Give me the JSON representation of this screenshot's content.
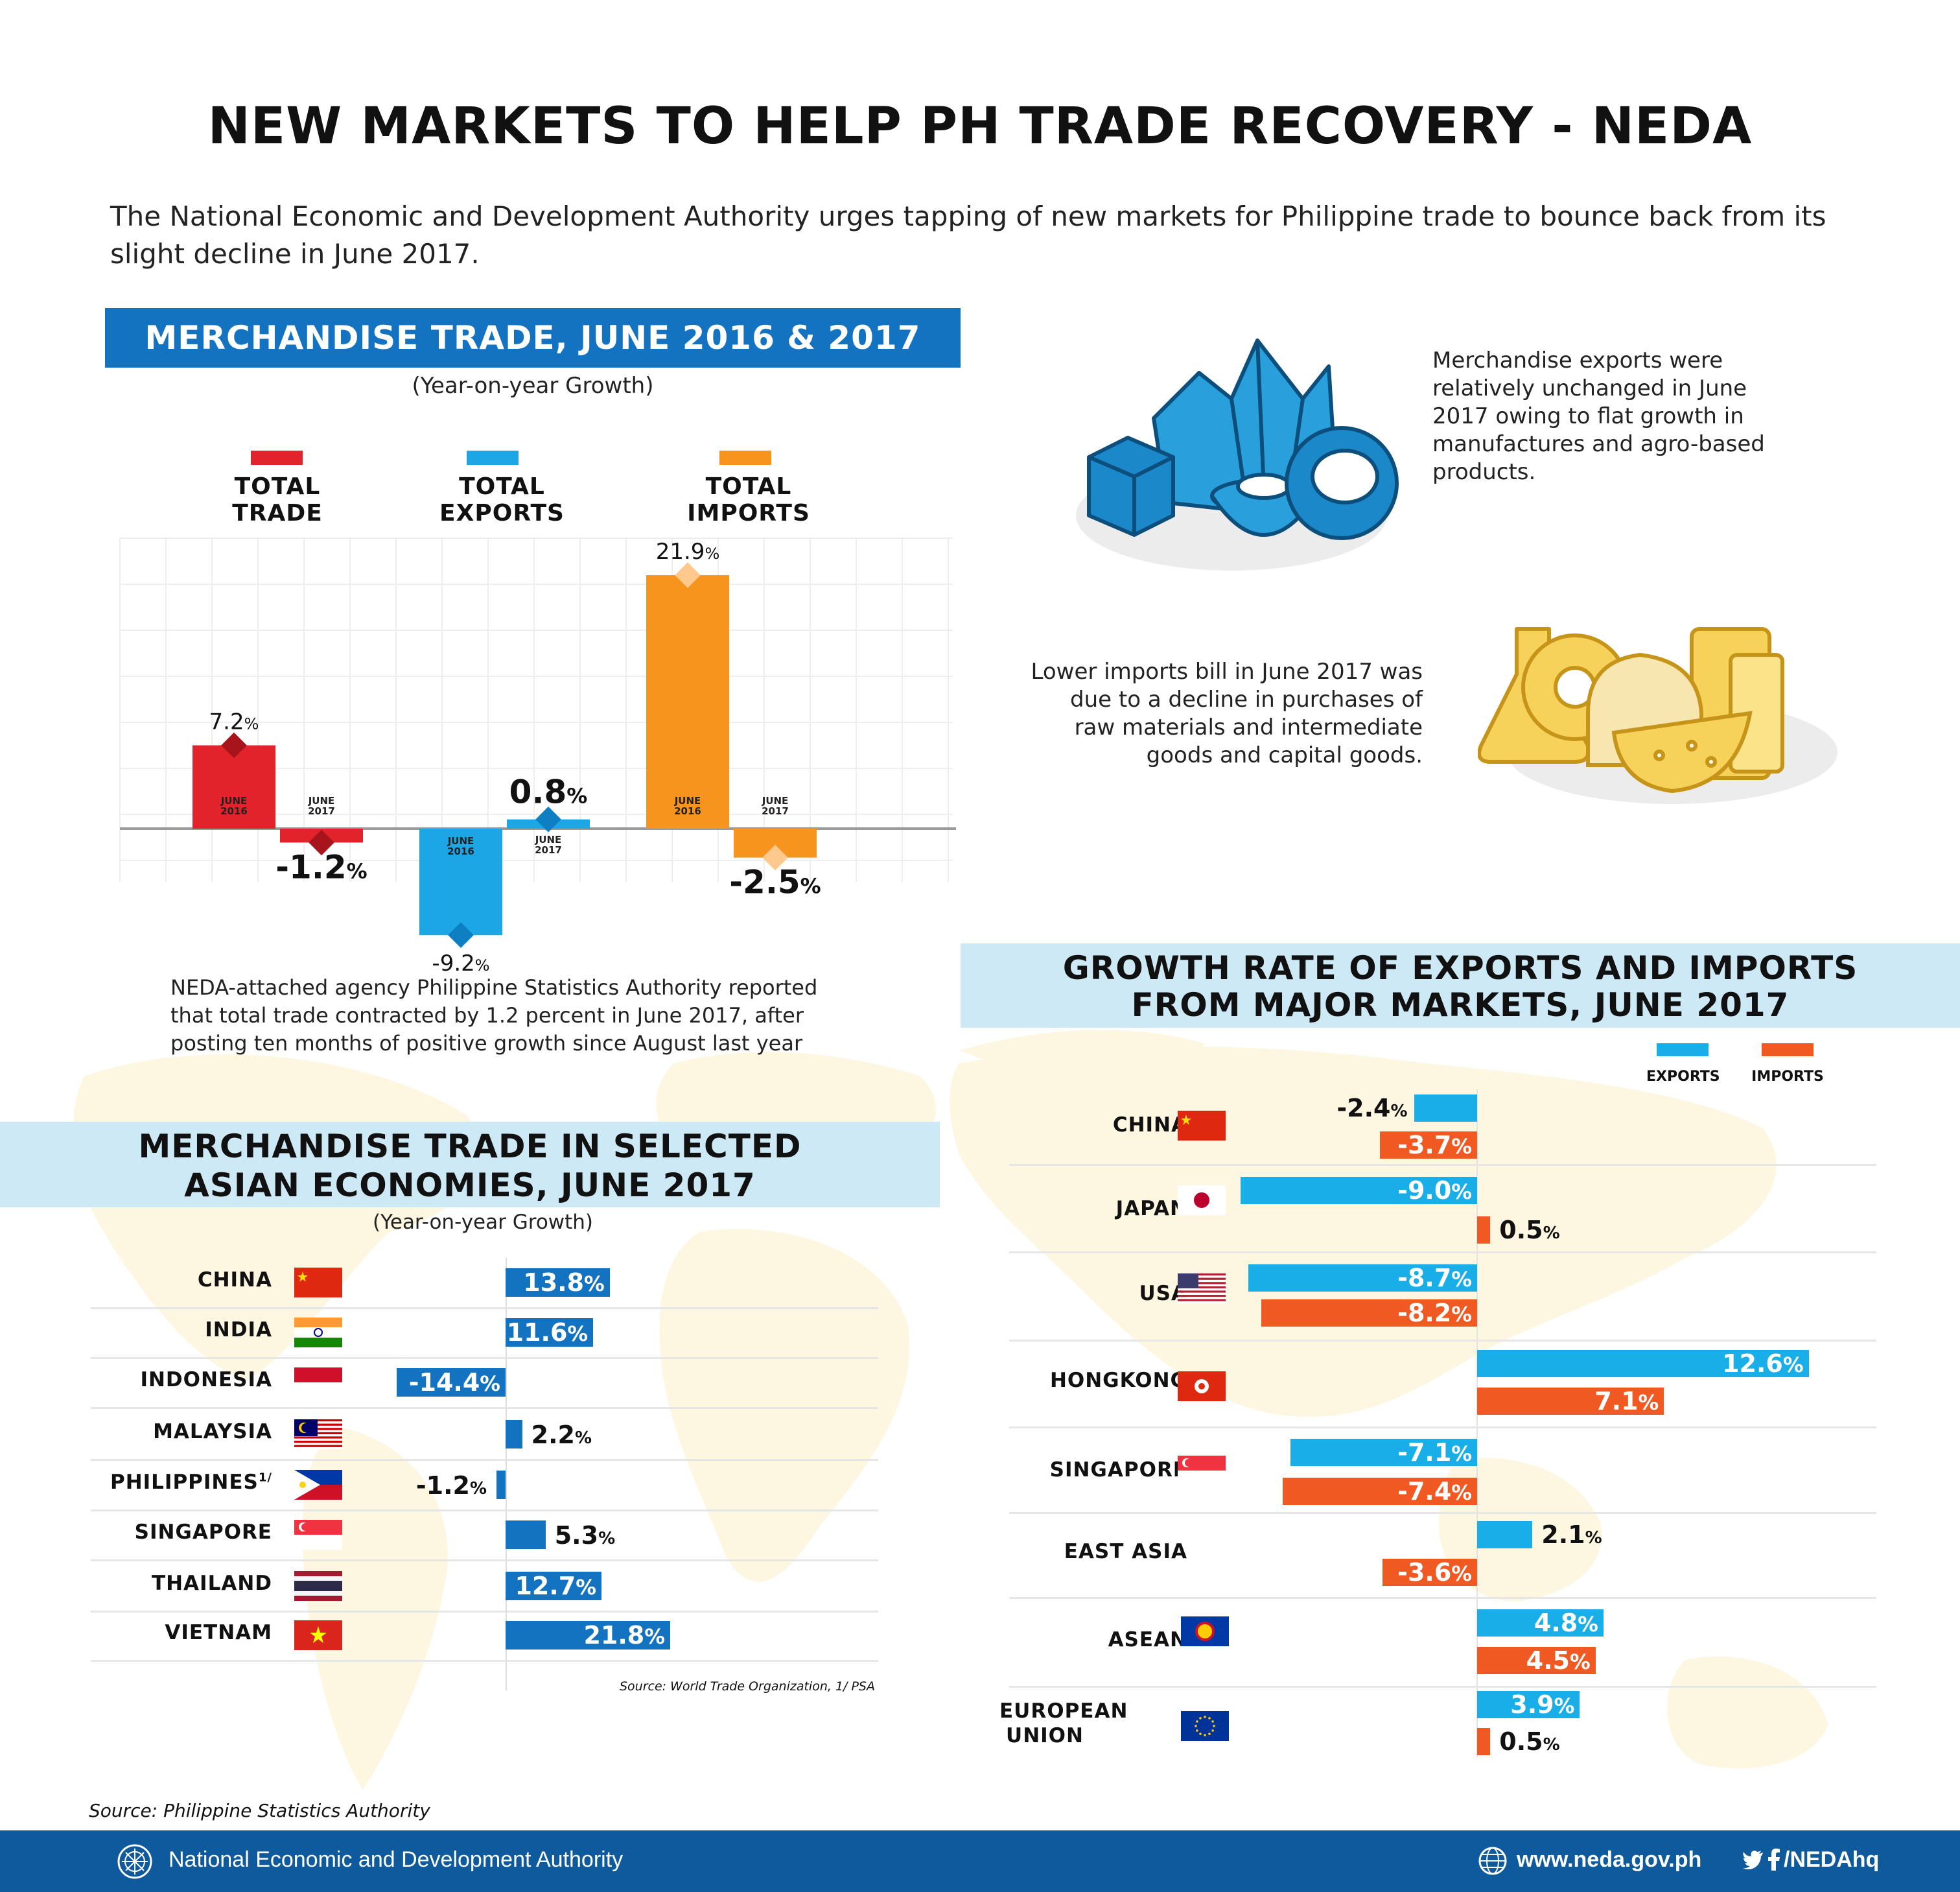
{
  "header": {
    "title": "NEW MARKETS TO HELP PH TRADE RECOVERY - NEDA",
    "intro": "The National Economic and Development Authority urges tapping of new markets for Philippine trade to bounce back from its slight decline in June 2017."
  },
  "trade_chart_header": {
    "title": "MERCHANDISE TRADE, JUNE 2016 & 2017",
    "subtitle": "(Year-on-year Growth)"
  },
  "trade_legend": [
    {
      "label": "TOTAL TRADE",
      "color": "#e3232b"
    },
    {
      "label": "TOTAL EXPORTS",
      "color": "#1da6e5"
    },
    {
      "label": "TOTAL IMPORTS",
      "color": "#f7941d"
    }
  ],
  "trade_bar_tags": {
    "june2016": "JUNE\n2016",
    "june2017": "JUNE\n2017"
  },
  "trade_note": "NEDA-attached agency Philippine Statistics Authority reported that total trade contracted by 1.2 percent in June 2017, after posting ten months of positive growth since August last year",
  "info": {
    "exports": "Merchandise exports were relatively unchanged in June 2017 owing to flat growth in manufactures and agro-based products.",
    "imports": "Lower imports bill in June 2017 was due to a decline in purchases of raw materials and intermediate goods and capital goods."
  },
  "asia_header": {
    "title_line1": "MERCHANDISE TRADE IN SELECTED",
    "title_line2": "ASIAN ECONOMIES, JUNE 2017",
    "subtitle": "(Year-on-year Growth)",
    "source": "Source: World Trade Organization, 1/ PSA"
  },
  "markets_header": {
    "title_line1": "GROWTH RATE OF EXPORTS AND IMPORTS",
    "title_line2": "FROM MAJOR MARKETS, JUNE 2017"
  },
  "markets_legend": [
    {
      "label": "EXPORTS",
      "color": "#1aaee8"
    },
    {
      "label": "IMPORTS",
      "color": "#f05a22"
    }
  ],
  "source_main": "Source: Philippine Statistics Authority",
  "footer": {
    "org": "National Economic and Development Authority",
    "website": "www.neda.gov.ph",
    "social": "/NEDAhq"
  },
  "icons": [
    "neda-seal-icon",
    "globe-icon",
    "twitter-icon",
    "facebook-icon"
  ],
  "chart_data": [
    {
      "type": "bar",
      "title": "MERCHANDISE TRADE, JUNE 2016 & 2017",
      "subtitle": "(Year-on-year Growth)",
      "categories": [
        "JUNE 2016",
        "JUNE 2017"
      ],
      "unit": "%",
      "series": [
        {
          "name": "TOTAL TRADE",
          "values": [
            7.2,
            -1.2
          ],
          "labels": [
            "7.2",
            "-1.2"
          ],
          "color": "#e3232b"
        },
        {
          "name": "TOTAL EXPORTS",
          "values": [
            -9.2,
            0.8
          ],
          "labels": [
            "-9.2",
            "0.8"
          ],
          "color": "#1da6e5"
        },
        {
          "name": "TOTAL IMPORTS",
          "values": [
            21.9,
            -2.5
          ],
          "labels": [
            "21.9",
            "-2.5"
          ],
          "color": "#f7941d"
        }
      ],
      "grid": true
    },
    {
      "type": "bar",
      "title": "MERCHANDISE TRADE IN SELECTED ASIAN ECONOMIES, JUNE 2017",
      "subtitle": "(Year-on-year Growth)",
      "orientation": "horizontal",
      "unit": "%",
      "categories": [
        "CHINA",
        "INDIA",
        "INDONESIA",
        "MALAYSIA",
        "PHILIPPINES",
        "SINGAPORE",
        "THAILAND",
        "VIETNAM"
      ],
      "category_notes": [
        "",
        "",
        "",
        "",
        "1/",
        "",
        "",
        ""
      ],
      "values": [
        13.8,
        11.6,
        -14.4,
        2.2,
        -1.2,
        5.3,
        12.7,
        21.8
      ],
      "labels": [
        "13.8",
        "11.6",
        "-14.4",
        "2.2",
        "-1.2",
        "5.3",
        "12.7",
        "21.8"
      ],
      "color": "#1473c0"
    },
    {
      "type": "bar",
      "title": "GROWTH RATE OF EXPORTS AND IMPORTS FROM MAJOR MARKETS, JUNE 2017",
      "orientation": "horizontal",
      "unit": "%",
      "categories": [
        "CHINA",
        "JAPAN",
        "USA",
        "HONGKONG",
        "SINGAPORE",
        "EAST ASIA",
        "ASEAN",
        "EUROPEAN UNION"
      ],
      "series": [
        {
          "name": "EXPORTS",
          "values": [
            -2.4,
            -9.0,
            -8.7,
            12.6,
            -7.1,
            2.1,
            4.8,
            3.9
          ],
          "labels": [
            "-2.4",
            "-9.0",
            "-8.7",
            "12.6",
            "-7.1",
            "2.1",
            "4.8",
            "3.9"
          ],
          "color": "#1aaee8"
        },
        {
          "name": "IMPORTS",
          "values": [
            -3.7,
            0.5,
            -8.2,
            7.1,
            -7.4,
            -3.6,
            4.5,
            0.5
          ],
          "labels": [
            "-3.7",
            "0.5",
            "-8.2",
            "7.1",
            "-7.4",
            "-3.6",
            "4.5",
            "0.5"
          ],
          "color": "#f05a22"
        }
      ]
    }
  ]
}
